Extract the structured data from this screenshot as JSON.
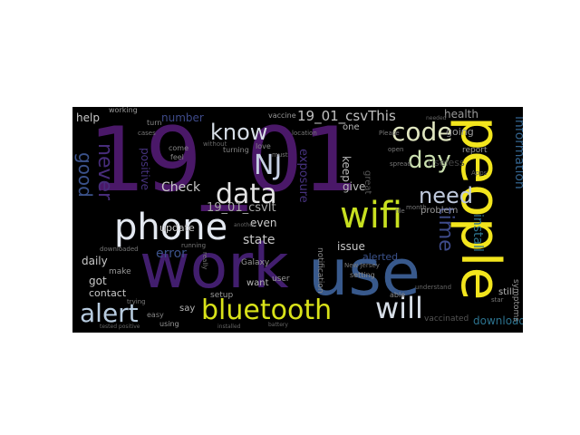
{
  "wordcloud": {
    "words": [
      {
        "text": "19_01",
        "color": "#4a1868"
      },
      {
        "text": "work",
        "color": "#421e6e"
      },
      {
        "text": "use",
        "color": "#38598c"
      },
      {
        "text": "people",
        "color": "#f2e51d"
      },
      {
        "text": "phone",
        "color": "#e3e8f0"
      },
      {
        "text": "wifi",
        "color": "#c8e020"
      },
      {
        "text": "bluetooth",
        "color": "#d8e219"
      },
      {
        "text": "data",
        "color": "#e5e5e5"
      },
      {
        "text": "alert",
        "color": "#b8cce0"
      },
      {
        "text": "NJ",
        "color": "#c7d0e4"
      },
      {
        "text": "know",
        "color": "#d6dde6"
      },
      {
        "text": "code",
        "color": "#e0e6c0"
      },
      {
        "text": "will",
        "color": "#d6dde6"
      },
      {
        "text": "need",
        "color": "#bfc9dc"
      },
      {
        "text": "day",
        "color": "#cbe0b0"
      },
      {
        "text": "time",
        "color": "#3e4b8a"
      },
      {
        "text": "never",
        "color": "#472c7a"
      },
      {
        "text": "good",
        "color": "#3b528b"
      },
      {
        "text": "19_01_csvThis",
        "color": "#c0c0c0"
      },
      {
        "text": "19_01_csvIt",
        "color": "#a8a8a8"
      },
      {
        "text": "Check",
        "color": "#c8c8c8"
      },
      {
        "text": "error",
        "color": "#3b528b"
      },
      {
        "text": "state",
        "color": "#c8c8c8"
      },
      {
        "text": "install",
        "color": "#2c728e"
      },
      {
        "text": "information",
        "color": "#33638d"
      },
      {
        "text": "exposure",
        "color": "#46327e"
      },
      {
        "text": "positive",
        "color": "#46337e"
      },
      {
        "text": "number",
        "color": "#3e4a89"
      },
      {
        "text": "health",
        "color": "#999999"
      },
      {
        "text": "help",
        "color": "#c8c8c8"
      },
      {
        "text": "keep",
        "color": "#b8b8b8"
      },
      {
        "text": "give",
        "color": "#b8b8b8"
      },
      {
        "text": "even",
        "color": "#cccccc"
      },
      {
        "text": "going",
        "color": "#999999"
      },
      {
        "text": "useless",
        "color": "#444444"
      },
      {
        "text": "problem",
        "color": "#999999"
      },
      {
        "text": "issue",
        "color": "#c8c8c8"
      },
      {
        "text": "alerted",
        "color": "#3b528b"
      },
      {
        "text": "update",
        "color": "#c8c8c8"
      },
      {
        "text": "daily",
        "color": "#c8c8c8"
      },
      {
        "text": "got",
        "color": "#c8c8c8"
      },
      {
        "text": "contact",
        "color": "#c8c8c8"
      },
      {
        "text": "make",
        "color": "#999999"
      },
      {
        "text": "say",
        "color": "#b8b8b8"
      },
      {
        "text": "setup",
        "color": "#999999"
      },
      {
        "text": "want",
        "color": "#b8b8b8"
      },
      {
        "text": "user",
        "color": "#999999"
      },
      {
        "text": "download",
        "color": "#2c728e"
      },
      {
        "text": "vaccinated",
        "color": "#555555"
      },
      {
        "text": "Galaxy",
        "color": "#999999"
      },
      {
        "text": "notification",
        "color": "#888888"
      },
      {
        "text": "great",
        "color": "#555555"
      },
      {
        "text": "one",
        "color": "#b8b8b8"
      },
      {
        "text": "vaccine",
        "color": "#999999"
      },
      {
        "text": "still",
        "color": "#b8b8b8"
      },
      {
        "text": "symptoms",
        "color": "#999999"
      },
      {
        "text": "report",
        "color": "#999999"
      },
      {
        "text": "turning",
        "color": "#888888"
      },
      {
        "text": "setting",
        "color": "#888888"
      },
      {
        "text": "able",
        "color": "#888888"
      },
      {
        "text": "using",
        "color": "#999999"
      },
      {
        "text": "working",
        "color": "#999999"
      },
      {
        "text": "come",
        "color": "#888888"
      },
      {
        "text": "love",
        "color": "#888888"
      },
      {
        "text": "feel",
        "color": "#888888"
      },
      {
        "text": "easy",
        "color": "#888888"
      },
      {
        "text": "cases",
        "color": "#777777"
      },
      {
        "text": "spread",
        "color": "#777777"
      },
      {
        "text": "month",
        "color": "#777777"
      },
      {
        "text": "must",
        "color": "#777777"
      },
      {
        "text": "open",
        "color": "#777777"
      },
      {
        "text": "location",
        "color": "#777777"
      },
      {
        "text": "battery",
        "color": "#666666"
      },
      {
        "text": "turn",
        "color": "#888888"
      },
      {
        "text": "downloaded",
        "color": "#777777"
      },
      {
        "text": "running",
        "color": "#777777"
      },
      {
        "text": "trying",
        "color": "#777777"
      },
      {
        "text": "New Jersey",
        "color": "#777777"
      },
      {
        "text": "Please",
        "color": "#777777"
      },
      {
        "text": "another",
        "color": "#666666"
      },
      {
        "text": "star",
        "color": "#777777"
      },
      {
        "text": "file",
        "color": "#777777"
      },
      {
        "text": "understand",
        "color": "#666666"
      },
      {
        "text": "tested positive",
        "color": "#666666"
      },
      {
        "text": "needed",
        "color": "#666666"
      },
      {
        "text": "really",
        "color": "#777777"
      },
      {
        "text": "without",
        "color": "#666666"
      },
      {
        "text": "Apps",
        "color": "#666666"
      },
      {
        "text": "installed",
        "color": "#666666"
      }
    ]
  }
}
